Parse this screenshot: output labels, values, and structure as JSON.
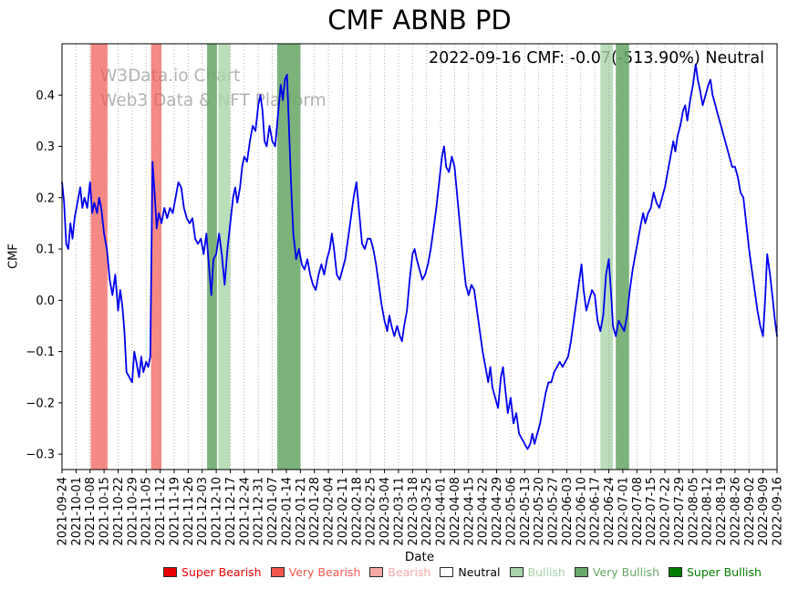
{
  "chart_data": {
    "type": "line",
    "title": "CMF ABNB PD",
    "annotation": "2022-09-16 CMF: -0.07(-513.90%) Neutral",
    "watermark": [
      "W3Data.io Chart",
      "Web3 Data & NFT Platform"
    ],
    "xlabel": "Date",
    "ylabel": "CMF",
    "ylim": [
      -0.33,
      0.5
    ],
    "yticks": [
      0.4,
      0.3,
      0.2,
      0.1,
      0.0,
      -0.1,
      -0.2,
      -0.3
    ],
    "x_scale": "points use fractional index into x_tick_labels (weekly dates)",
    "x_tick_labels": [
      "2021-09-24",
      "2021-10-01",
      "2021-10-08",
      "2021-10-15",
      "2021-10-22",
      "2021-10-29",
      "2021-11-05",
      "2021-11-12",
      "2021-11-19",
      "2021-11-26",
      "2021-12-03",
      "2021-12-10",
      "2021-12-17",
      "2021-12-24",
      "2021-12-31",
      "2022-01-07",
      "2022-01-14",
      "2022-01-21",
      "2022-01-28",
      "2022-02-04",
      "2022-02-11",
      "2022-02-18",
      "2022-02-25",
      "2022-03-04",
      "2022-03-11",
      "2022-03-18",
      "2022-03-25",
      "2022-04-01",
      "2022-04-08",
      "2022-04-15",
      "2022-04-22",
      "2022-04-29",
      "2022-05-06",
      "2022-05-13",
      "2022-05-20",
      "2022-05-27",
      "2022-06-03",
      "2022-06-10",
      "2022-06-17",
      "2022-06-24",
      "2022-07-01",
      "2022-07-08",
      "2022-07-15",
      "2022-07-22",
      "2022-07-29",
      "2022-08-05",
      "2022-08-12",
      "2022-08-19",
      "2022-08-26",
      "2022-09-02",
      "2022-09-09",
      "2022-09-16"
    ],
    "grid": {
      "vertical": true,
      "style": "dotted",
      "color": "#999999"
    },
    "line": {
      "name": "CMF",
      "color": "#0000ee"
    },
    "series": [
      {
        "name": "CMF",
        "points": [
          [
            0,
            0.23
          ],
          [
            0.15,
            0.19
          ],
          [
            0.3,
            0.11
          ],
          [
            0.45,
            0.1
          ],
          [
            0.6,
            0.15
          ],
          [
            0.75,
            0.12
          ],
          [
            0.9,
            0.16
          ],
          [
            1.1,
            0.19
          ],
          [
            1.3,
            0.22
          ],
          [
            1.45,
            0.18
          ],
          [
            1.6,
            0.2
          ],
          [
            1.8,
            0.18
          ],
          [
            2.0,
            0.23
          ],
          [
            2.15,
            0.17
          ],
          [
            2.3,
            0.19
          ],
          [
            2.5,
            0.17
          ],
          [
            2.65,
            0.2
          ],
          [
            2.8,
            0.18
          ],
          [
            3.0,
            0.13
          ],
          [
            3.2,
            0.1
          ],
          [
            3.4,
            0.04
          ],
          [
            3.6,
            0.01
          ],
          [
            3.8,
            0.05
          ],
          [
            4.0,
            -0.02
          ],
          [
            4.15,
            0.02
          ],
          [
            4.3,
            -0.01
          ],
          [
            4.45,
            -0.06
          ],
          [
            4.6,
            -0.14
          ],
          [
            4.8,
            -0.15
          ],
          [
            5.0,
            -0.16
          ],
          [
            5.15,
            -0.1
          ],
          [
            5.3,
            -0.12
          ],
          [
            5.5,
            -0.15
          ],
          [
            5.65,
            -0.11
          ],
          [
            5.8,
            -0.14
          ],
          [
            6.0,
            -0.12
          ],
          [
            6.15,
            -0.13
          ],
          [
            6.3,
            -0.11
          ],
          [
            6.45,
            0.27
          ],
          [
            6.6,
            0.21
          ],
          [
            6.75,
            0.14
          ],
          [
            6.9,
            0.17
          ],
          [
            7.1,
            0.15
          ],
          [
            7.3,
            0.18
          ],
          [
            7.5,
            0.16
          ],
          [
            7.7,
            0.18
          ],
          [
            7.9,
            0.17
          ],
          [
            8.1,
            0.2
          ],
          [
            8.3,
            0.23
          ],
          [
            8.5,
            0.22
          ],
          [
            8.7,
            0.18
          ],
          [
            8.9,
            0.16
          ],
          [
            9.1,
            0.15
          ],
          [
            9.3,
            0.16
          ],
          [
            9.5,
            0.12
          ],
          [
            9.7,
            0.11
          ],
          [
            9.9,
            0.12
          ],
          [
            10.1,
            0.09
          ],
          [
            10.3,
            0.13
          ],
          [
            10.5,
            0.06
          ],
          [
            10.65,
            0.01
          ],
          [
            10.8,
            0.08
          ],
          [
            11.0,
            0.09
          ],
          [
            11.2,
            0.13
          ],
          [
            11.4,
            0.09
          ],
          [
            11.6,
            0.03
          ],
          [
            11.8,
            0.1
          ],
          [
            12.0,
            0.15
          ],
          [
            12.2,
            0.2
          ],
          [
            12.35,
            0.22
          ],
          [
            12.5,
            0.19
          ],
          [
            12.7,
            0.22
          ],
          [
            12.85,
            0.26
          ],
          [
            13.0,
            0.28
          ],
          [
            13.2,
            0.27
          ],
          [
            13.4,
            0.31
          ],
          [
            13.6,
            0.34
          ],
          [
            13.8,
            0.33
          ],
          [
            14.0,
            0.38
          ],
          [
            14.15,
            0.4
          ],
          [
            14.3,
            0.37
          ],
          [
            14.45,
            0.31
          ],
          [
            14.6,
            0.3
          ],
          [
            14.8,
            0.34
          ],
          [
            15.0,
            0.31
          ],
          [
            15.2,
            0.3
          ],
          [
            15.4,
            0.36
          ],
          [
            15.6,
            0.42
          ],
          [
            15.75,
            0.39
          ],
          [
            15.9,
            0.43
          ],
          [
            16.05,
            0.44
          ],
          [
            16.2,
            0.33
          ],
          [
            16.35,
            0.22
          ],
          [
            16.5,
            0.13
          ],
          [
            16.7,
            0.08
          ],
          [
            16.9,
            0.1
          ],
          [
            17.1,
            0.07
          ],
          [
            17.3,
            0.06
          ],
          [
            17.5,
            0.08
          ],
          [
            17.7,
            0.05
          ],
          [
            17.9,
            0.03
          ],
          [
            18.1,
            0.02
          ],
          [
            18.3,
            0.05
          ],
          [
            18.5,
            0.07
          ],
          [
            18.7,
            0.05
          ],
          [
            18.9,
            0.08
          ],
          [
            19.1,
            0.1
          ],
          [
            19.25,
            0.13
          ],
          [
            19.4,
            0.1
          ],
          [
            19.6,
            0.05
          ],
          [
            19.8,
            0.04
          ],
          [
            20.0,
            0.06
          ],
          [
            20.2,
            0.08
          ],
          [
            20.4,
            0.12
          ],
          [
            20.6,
            0.16
          ],
          [
            20.8,
            0.2
          ],
          [
            21.0,
            0.23
          ],
          [
            21.2,
            0.17
          ],
          [
            21.4,
            0.11
          ],
          [
            21.6,
            0.1
          ],
          [
            21.8,
            0.12
          ],
          [
            22.0,
            0.12
          ],
          [
            22.2,
            0.1
          ],
          [
            22.4,
            0.07
          ],
          [
            22.6,
            0.03
          ],
          [
            22.8,
            -0.01
          ],
          [
            23.0,
            -0.04
          ],
          [
            23.2,
            -0.06
          ],
          [
            23.35,
            -0.03
          ],
          [
            23.5,
            -0.05
          ],
          [
            23.7,
            -0.07
          ],
          [
            23.9,
            -0.05
          ],
          [
            24.1,
            -0.07
          ],
          [
            24.25,
            -0.08
          ],
          [
            24.4,
            -0.05
          ],
          [
            24.6,
            -0.02
          ],
          [
            24.8,
            0.04
          ],
          [
            25.0,
            0.09
          ],
          [
            25.15,
            0.1
          ],
          [
            25.3,
            0.08
          ],
          [
            25.5,
            0.06
          ],
          [
            25.7,
            0.04
          ],
          [
            25.9,
            0.05
          ],
          [
            26.1,
            0.07
          ],
          [
            26.3,
            0.1
          ],
          [
            26.5,
            0.14
          ],
          [
            26.7,
            0.18
          ],
          [
            26.9,
            0.23
          ],
          [
            27.1,
            0.28
          ],
          [
            27.25,
            0.3
          ],
          [
            27.4,
            0.26
          ],
          [
            27.6,
            0.25
          ],
          [
            27.8,
            0.28
          ],
          [
            28.0,
            0.26
          ],
          [
            28.2,
            0.2
          ],
          [
            28.4,
            0.14
          ],
          [
            28.6,
            0.08
          ],
          [
            28.8,
            0.03
          ],
          [
            29.0,
            0.01
          ],
          [
            29.2,
            0.03
          ],
          [
            29.4,
            0.02
          ],
          [
            29.6,
            -0.02
          ],
          [
            29.8,
            -0.06
          ],
          [
            30.0,
            -0.1
          ],
          [
            30.2,
            -0.13
          ],
          [
            30.4,
            -0.16
          ],
          [
            30.55,
            -0.13
          ],
          [
            30.7,
            -0.17
          ],
          [
            30.9,
            -0.19
          ],
          [
            31.1,
            -0.21
          ],
          [
            31.3,
            -0.15
          ],
          [
            31.45,
            -0.13
          ],
          [
            31.6,
            -0.17
          ],
          [
            31.8,
            -0.22
          ],
          [
            32.0,
            -0.19
          ],
          [
            32.2,
            -0.24
          ],
          [
            32.4,
            -0.22
          ],
          [
            32.6,
            -0.26
          ],
          [
            32.8,
            -0.27
          ],
          [
            33.0,
            -0.28
          ],
          [
            33.2,
            -0.29
          ],
          [
            33.4,
            -0.28
          ],
          [
            33.55,
            -0.26
          ],
          [
            33.7,
            -0.28
          ],
          [
            33.9,
            -0.26
          ],
          [
            34.1,
            -0.24
          ],
          [
            34.3,
            -0.21
          ],
          [
            34.5,
            -0.18
          ],
          [
            34.7,
            -0.16
          ],
          [
            34.9,
            -0.16
          ],
          [
            35.1,
            -0.14
          ],
          [
            35.3,
            -0.13
          ],
          [
            35.5,
            -0.12
          ],
          [
            35.7,
            -0.13
          ],
          [
            35.9,
            -0.12
          ],
          [
            36.1,
            -0.11
          ],
          [
            36.3,
            -0.08
          ],
          [
            36.5,
            -0.04
          ],
          [
            36.7,
            0.0
          ],
          [
            36.9,
            0.04
          ],
          [
            37.05,
            0.07
          ],
          [
            37.2,
            0.02
          ],
          [
            37.4,
            -0.02
          ],
          [
            37.6,
            0.0
          ],
          [
            37.8,
            0.02
          ],
          [
            38.0,
            0.01
          ],
          [
            38.2,
            -0.04
          ],
          [
            38.4,
            -0.06
          ],
          [
            38.6,
            -0.03
          ],
          [
            38.8,
            0.05
          ],
          [
            39.0,
            0.08
          ],
          [
            39.15,
            0.02
          ],
          [
            39.3,
            -0.05
          ],
          [
            39.5,
            -0.07
          ],
          [
            39.7,
            -0.04
          ],
          [
            39.9,
            -0.05
          ],
          [
            40.1,
            -0.06
          ],
          [
            40.3,
            -0.03
          ],
          [
            40.5,
            0.02
          ],
          [
            40.7,
            0.06
          ],
          [
            40.9,
            0.09
          ],
          [
            41.1,
            0.12
          ],
          [
            41.3,
            0.15
          ],
          [
            41.45,
            0.17
          ],
          [
            41.6,
            0.15
          ],
          [
            41.8,
            0.17
          ],
          [
            42.0,
            0.18
          ],
          [
            42.2,
            0.21
          ],
          [
            42.4,
            0.19
          ],
          [
            42.6,
            0.18
          ],
          [
            42.8,
            0.2
          ],
          [
            43.0,
            0.22
          ],
          [
            43.2,
            0.25
          ],
          [
            43.4,
            0.28
          ],
          [
            43.6,
            0.31
          ],
          [
            43.75,
            0.29
          ],
          [
            43.9,
            0.32
          ],
          [
            44.1,
            0.34
          ],
          [
            44.3,
            0.37
          ],
          [
            44.45,
            0.38
          ],
          [
            44.6,
            0.35
          ],
          [
            44.8,
            0.39
          ],
          [
            45.0,
            0.42
          ],
          [
            45.2,
            0.46
          ],
          [
            45.35,
            0.43
          ],
          [
            45.5,
            0.41
          ],
          [
            45.7,
            0.38
          ],
          [
            45.9,
            0.4
          ],
          [
            46.1,
            0.42
          ],
          [
            46.25,
            0.43
          ],
          [
            46.4,
            0.4
          ],
          [
            46.6,
            0.38
          ],
          [
            46.8,
            0.36
          ],
          [
            47.0,
            0.34
          ],
          [
            47.2,
            0.32
          ],
          [
            47.4,
            0.3
          ],
          [
            47.6,
            0.28
          ],
          [
            47.8,
            0.26
          ],
          [
            48.0,
            0.26
          ],
          [
            48.2,
            0.24
          ],
          [
            48.4,
            0.21
          ],
          [
            48.6,
            0.2
          ],
          [
            48.8,
            0.15
          ],
          [
            49.0,
            0.1
          ],
          [
            49.2,
            0.06
          ],
          [
            49.4,
            0.02
          ],
          [
            49.6,
            -0.02
          ],
          [
            49.8,
            -0.05
          ],
          [
            50.0,
            -0.07
          ],
          [
            50.15,
            0.0
          ],
          [
            50.3,
            0.09
          ],
          [
            50.5,
            0.05
          ],
          [
            50.7,
            0.0
          ],
          [
            50.85,
            -0.04
          ],
          [
            51.0,
            -0.07
          ]
        ]
      }
    ],
    "bands": [
      {
        "from": 2.05,
        "to": 3.25,
        "level": "very_bearish"
      },
      {
        "from": 6.35,
        "to": 7.1,
        "level": "very_bearish"
      },
      {
        "from": 10.35,
        "to": 11.05,
        "level": "very_bullish"
      },
      {
        "from": 11.15,
        "to": 12.0,
        "level": "bullish"
      },
      {
        "from": 15.35,
        "to": 17.0,
        "level": "very_bullish"
      },
      {
        "from": 38.4,
        "to": 39.3,
        "level": "bullish"
      },
      {
        "from": 39.5,
        "to": 40.45,
        "level": "very_bullish"
      }
    ],
    "band_colors": {
      "very_bearish": "#f2574f",
      "bullish": "#a9d4a9",
      "very_bullish": "#69a869"
    },
    "legend": {
      "position": "bottom-center",
      "items": [
        {
          "label": "Super Bearish",
          "color": "#e80000"
        },
        {
          "label": "Very Bearish",
          "color": "#f2574f"
        },
        {
          "label": "Bearish",
          "color": "#f5a9a5"
        },
        {
          "label": "Neutral",
          "color": "#ffffff",
          "text_color": "#000000"
        },
        {
          "label": "Bullish",
          "color": "#a9d4a9"
        },
        {
          "label": "Very Bullish",
          "color": "#69a869"
        },
        {
          "label": "Super Bullish",
          "color": "#007d00"
        }
      ]
    },
    "last_point": {
      "date": "2022-09-16",
      "cmf": -0.07,
      "change_pct": "-513.90%",
      "classification": "Neutral"
    }
  }
}
